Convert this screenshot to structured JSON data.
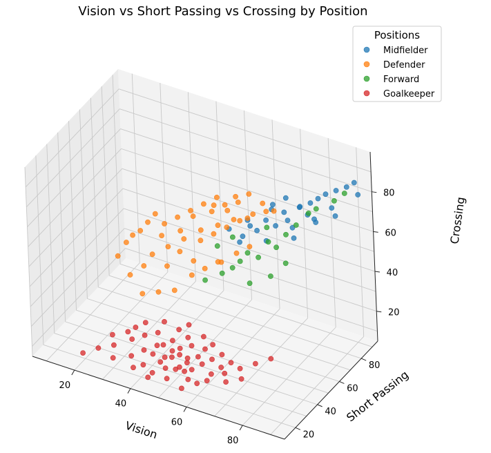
{
  "chart_data": {
    "type": "scatter",
    "projection": "3d",
    "title": "Vision vs Short Passing vs Crossing by Position",
    "xlabel": "Vision",
    "ylabel": "Short Passing",
    "zlabel": "Crossing",
    "xlim": [
      5,
      95
    ],
    "ylim": [
      10,
      95
    ],
    "zlim": [
      5,
      100
    ],
    "x_ticks": [
      20,
      40,
      60,
      80
    ],
    "y_ticks": [
      20,
      40,
      60,
      80
    ],
    "z_ticks": [
      20,
      40,
      60,
      80
    ],
    "grid": true,
    "legend": {
      "title": "Positions",
      "position": "top-right"
    },
    "marker_alpha": 0.75,
    "series": [
      {
        "name": "Midfielder",
        "color": "#1f77b4",
        "points": [
          [
            60,
            72,
            60
          ],
          [
            65,
            74,
            64
          ],
          [
            70,
            78,
            68
          ],
          [
            75,
            80,
            72
          ],
          [
            78,
            82,
            74
          ],
          [
            80,
            84,
            76
          ],
          [
            72,
            76,
            66
          ],
          [
            68,
            75,
            62
          ],
          [
            62,
            73,
            58
          ],
          [
            58,
            70,
            55
          ],
          [
            74,
            82,
            70
          ],
          [
            85,
            88,
            80
          ],
          [
            88,
            90,
            82
          ],
          [
            90,
            92,
            84
          ],
          [
            82,
            86,
            78
          ],
          [
            66,
            78,
            70
          ],
          [
            70,
            80,
            74
          ],
          [
            76,
            84,
            66
          ],
          [
            64,
            76,
            52
          ],
          [
            56,
            72,
            50
          ],
          [
            72,
            80,
            60
          ],
          [
            78,
            86,
            62
          ],
          [
            84,
            86,
            72
          ],
          [
            86,
            84,
            70
          ],
          [
            68,
            72,
            72
          ],
          [
            60,
            70,
            64
          ],
          [
            54,
            68,
            58
          ],
          [
            74,
            76,
            58
          ],
          [
            80,
            80,
            68
          ],
          [
            92,
            90,
            80
          ]
        ]
      },
      {
        "name": "Defender",
        "color": "#ff7f0e",
        "points": [
          [
            35,
            60,
            45
          ],
          [
            40,
            62,
            50
          ],
          [
            45,
            65,
            55
          ],
          [
            50,
            68,
            58
          ],
          [
            55,
            70,
            62
          ],
          [
            60,
            70,
            65
          ],
          [
            30,
            58,
            40
          ],
          [
            28,
            55,
            35
          ],
          [
            25,
            50,
            32
          ],
          [
            32,
            62,
            48
          ],
          [
            38,
            64,
            52
          ],
          [
            42,
            66,
            60
          ],
          [
            48,
            68,
            64
          ],
          [
            52,
            70,
            68
          ],
          [
            56,
            72,
            70
          ],
          [
            44,
            60,
            42
          ],
          [
            36,
            56,
            38
          ],
          [
            40,
            58,
            46
          ],
          [
            46,
            62,
            52
          ],
          [
            50,
            64,
            56
          ],
          [
            54,
            66,
            60
          ],
          [
            58,
            68,
            64
          ],
          [
            62,
            70,
            68
          ],
          [
            66,
            72,
            70
          ],
          [
            34,
            60,
            56
          ],
          [
            30,
            62,
            58
          ],
          [
            26,
            58,
            50
          ],
          [
            22,
            55,
            44
          ],
          [
            20,
            52,
            38
          ],
          [
            46,
            66,
            68
          ],
          [
            50,
            68,
            72
          ],
          [
            56,
            70,
            74
          ],
          [
            60,
            72,
            76
          ],
          [
            64,
            74,
            72
          ],
          [
            68,
            74,
            70
          ],
          [
            42,
            64,
            64
          ],
          [
            38,
            62,
            60
          ],
          [
            44,
            58,
            36
          ],
          [
            48,
            60,
            40
          ],
          [
            52,
            62,
            44
          ],
          [
            40,
            52,
            30
          ],
          [
            35,
            50,
            28
          ],
          [
            30,
            48,
            26
          ],
          [
            58,
            64,
            50
          ],
          [
            62,
            66,
            54
          ],
          [
            54,
            60,
            46
          ],
          [
            28,
            60,
            54
          ],
          [
            24,
            56,
            48
          ],
          [
            48,
            70,
            66
          ],
          [
            52,
            72,
            64
          ]
        ]
      },
      {
        "name": "Forward",
        "color": "#2ca02c",
        "points": [
          [
            60,
            62,
            48
          ],
          [
            65,
            66,
            50
          ],
          [
            70,
            70,
            55
          ],
          [
            72,
            74,
            60
          ],
          [
            75,
            76,
            65
          ],
          [
            78,
            80,
            70
          ],
          [
            55,
            58,
            42
          ],
          [
            50,
            55,
            38
          ],
          [
            58,
            60,
            45
          ],
          [
            62,
            64,
            52
          ],
          [
            68,
            68,
            58
          ],
          [
            80,
            82,
            72
          ],
          [
            85,
            86,
            76
          ],
          [
            88,
            88,
            80
          ],
          [
            64,
            60,
            40
          ],
          [
            70,
            64,
            44
          ],
          [
            74,
            68,
            50
          ],
          [
            52,
            62,
            52
          ],
          [
            56,
            66,
            56
          ],
          [
            66,
            72,
            62
          ]
        ]
      },
      {
        "name": "Goalkeeper",
        "color": "#d62728",
        "points": [
          [
            45,
            25,
            12
          ],
          [
            48,
            28,
            14
          ],
          [
            50,
            30,
            15
          ],
          [
            52,
            32,
            13
          ],
          [
            55,
            28,
            11
          ],
          [
            40,
            22,
            10
          ],
          [
            42,
            30,
            16
          ],
          [
            46,
            34,
            18
          ],
          [
            50,
            26,
            10
          ],
          [
            54,
            24,
            12
          ],
          [
            58,
            30,
            14
          ],
          [
            60,
            34,
            15
          ],
          [
            38,
            28,
            13
          ],
          [
            35,
            24,
            11
          ],
          [
            44,
            20,
            9
          ],
          [
            48,
            22,
            12
          ],
          [
            52,
            36,
            17
          ],
          [
            56,
            38,
            16
          ],
          [
            62,
            28,
            12
          ],
          [
            64,
            32,
            14
          ],
          [
            30,
            20,
            10
          ],
          [
            33,
            30,
            15
          ],
          [
            40,
            36,
            18
          ],
          [
            46,
            40,
            20
          ],
          [
            50,
            38,
            19
          ],
          [
            56,
            22,
            10
          ],
          [
            60,
            20,
            11
          ],
          [
            66,
            30,
            13
          ],
          [
            70,
            34,
            15
          ],
          [
            36,
            34,
            16
          ],
          [
            28,
            26,
            12
          ],
          [
            24,
            22,
            11
          ],
          [
            42,
            26,
            14
          ],
          [
            47,
            31,
            15
          ],
          [
            53,
            29,
            13
          ],
          [
            49,
            33,
            16
          ],
          [
            45,
            29,
            12
          ],
          [
            51,
            27,
            11
          ],
          [
            43,
            33,
            15
          ],
          [
            55,
            34,
            14
          ],
          [
            20,
            18,
            9
          ],
          [
            26,
            30,
            14
          ],
          [
            32,
            36,
            17
          ],
          [
            58,
            40,
            18
          ],
          [
            62,
            38,
            16
          ],
          [
            68,
            26,
            12
          ],
          [
            72,
            30,
            13
          ],
          [
            38,
            18,
            10
          ],
          [
            44,
            16,
            9
          ],
          [
            50,
            18,
            10
          ],
          [
            56,
            16,
            9
          ],
          [
            62,
            24,
            11
          ],
          [
            66,
            36,
            15
          ],
          [
            74,
            38,
            17
          ],
          [
            78,
            42,
            19
          ],
          [
            34,
            40,
            18
          ],
          [
            30,
            34,
            15
          ],
          [
            40,
            42,
            20
          ],
          [
            48,
            44,
            21
          ],
          [
            54,
            42,
            19
          ]
        ]
      }
    ]
  }
}
